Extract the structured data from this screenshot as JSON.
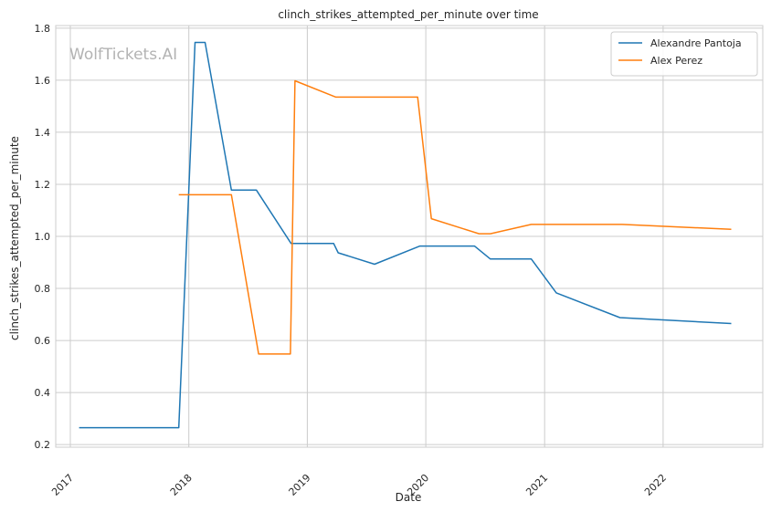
{
  "watermark": "WolfTickets.AI",
  "chart_data": {
    "type": "line",
    "title": "clinch_strikes_attempted_per_minute over time",
    "xlabel": "Date",
    "ylabel": "clinch_strikes_attempted_per_minute",
    "x_type": "date",
    "xlim": [
      "2016-11-17",
      "2022-11-04"
    ],
    "ylim": [
      0.19,
      1.81
    ],
    "x_ticks": [
      {
        "date": "2017-01-01",
        "label": "2017"
      },
      {
        "date": "2018-01-01",
        "label": "2018"
      },
      {
        "date": "2019-01-01",
        "label": "2019"
      },
      {
        "date": "2020-01-01",
        "label": "2020"
      },
      {
        "date": "2021-01-01",
        "label": "2021"
      },
      {
        "date": "2022-01-01",
        "label": "2022"
      }
    ],
    "y_ticks": [
      0.2,
      0.4,
      0.6,
      0.8,
      1.0,
      1.2,
      1.4,
      1.6,
      1.8
    ],
    "y_tick_labels": [
      "0.2",
      "0.4",
      "0.6",
      "0.8",
      "1.0",
      "1.2",
      "1.4",
      "1.6",
      "1.8"
    ],
    "grid": true,
    "legend_position": "top-right",
    "series": [
      {
        "name": "Alexandre Pantoja",
        "color": "#1f77b4",
        "points": [
          [
            "2017-01-28",
            0.265
          ],
          [
            "2017-12-01",
            0.265
          ],
          [
            "2018-01-20",
            1.745
          ],
          [
            "2018-02-20",
            1.745
          ],
          [
            "2018-05-12",
            1.178
          ],
          [
            "2018-07-28",
            1.178
          ],
          [
            "2018-11-12",
            0.973
          ],
          [
            "2019-03-23",
            0.973
          ],
          [
            "2019-04-06",
            0.937
          ],
          [
            "2019-07-27",
            0.893
          ],
          [
            "2019-12-14",
            0.963
          ],
          [
            "2020-05-30",
            0.963
          ],
          [
            "2020-07-18",
            0.913
          ],
          [
            "2020-11-21",
            0.913
          ],
          [
            "2021-02-06",
            0.783
          ],
          [
            "2021-08-21",
            0.688
          ],
          [
            "2022-07-30",
            0.665
          ]
        ]
      },
      {
        "name": "Alex Perez",
        "color": "#ff7f0e",
        "points": [
          [
            "2017-12-01",
            1.16
          ],
          [
            "2018-05-12",
            1.16
          ],
          [
            "2018-08-04",
            0.548
          ],
          [
            "2018-11-10",
            0.548
          ],
          [
            "2018-11-24",
            1.598
          ],
          [
            "2019-03-30",
            1.535
          ],
          [
            "2019-12-07",
            1.535
          ],
          [
            "2020-01-18",
            1.068
          ],
          [
            "2020-06-13",
            1.01
          ],
          [
            "2020-07-18",
            1.01
          ],
          [
            "2020-11-21",
            1.046
          ],
          [
            "2021-08-28",
            1.046
          ],
          [
            "2022-07-30",
            1.027
          ]
        ]
      }
    ]
  }
}
